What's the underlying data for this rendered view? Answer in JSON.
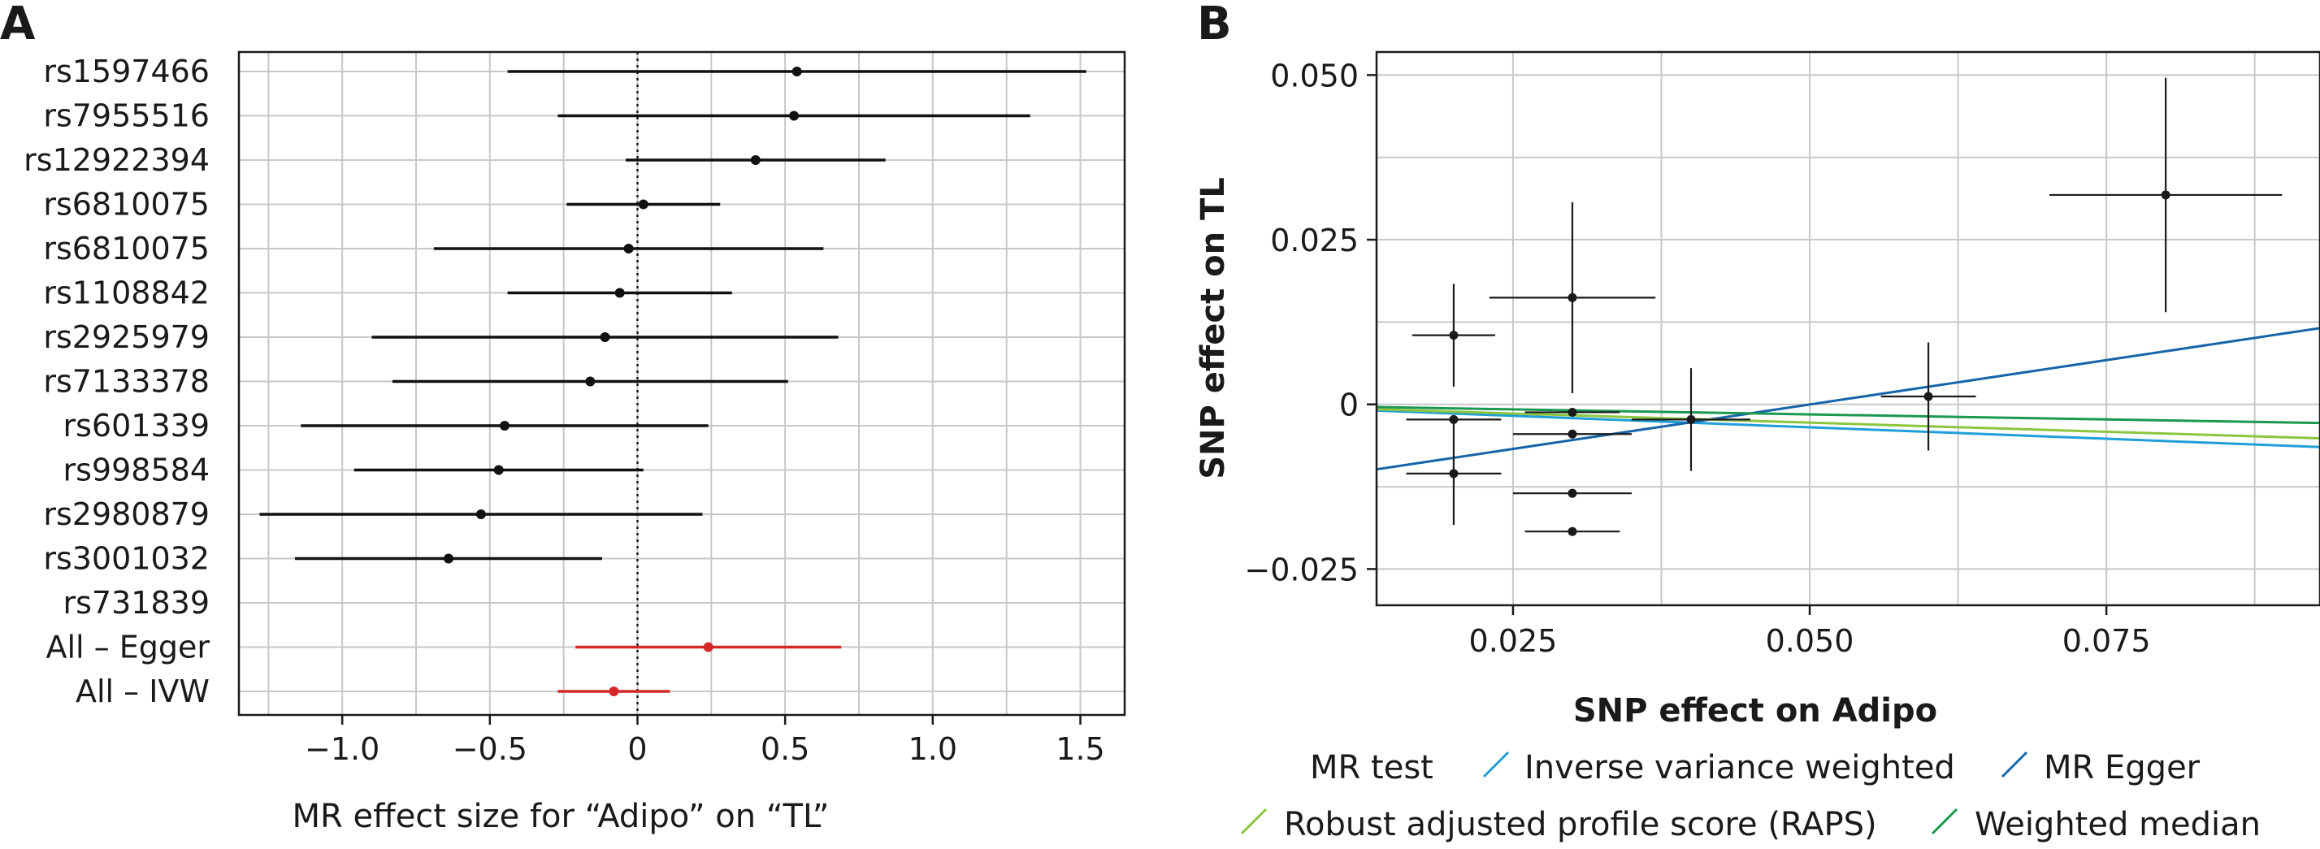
{
  "chart_data": [
    {
      "panel": "A",
      "type": "forest",
      "xlabel": "MR effect size for “Adipo” on “TL”",
      "xlim": [
        -1.35,
        1.65
      ],
      "xticks": [
        -1.0,
        -0.5,
        0,
        0.5,
        1.0,
        1.5
      ],
      "xtick_labels": [
        "−1.0",
        "−0.5",
        "0",
        "0.5",
        "1.0",
        "1.5"
      ],
      "grid": true,
      "reference_line": 0,
      "rows": [
        {
          "label": "rs1597466",
          "estimate": 0.54,
          "lower": -0.44,
          "upper": 1.52,
          "color": "#111111"
        },
        {
          "label": "rs7955516",
          "estimate": 0.53,
          "lower": -0.27,
          "upper": 1.33,
          "color": "#111111"
        },
        {
          "label": "rs12922394",
          "estimate": 0.4,
          "lower": -0.04,
          "upper": 0.84,
          "color": "#111111"
        },
        {
          "label": "rs6810075",
          "estimate": 0.02,
          "lower": -0.24,
          "upper": 0.28,
          "color": "#111111"
        },
        {
          "label": "rs6810075",
          "estimate": -0.03,
          "lower": -0.69,
          "upper": 0.63,
          "color": "#111111"
        },
        {
          "label": "rs1108842",
          "estimate": -0.06,
          "lower": -0.44,
          "upper": 0.32,
          "color": "#111111"
        },
        {
          "label": "rs2925979",
          "estimate": -0.11,
          "lower": -0.9,
          "upper": 0.68,
          "color": "#111111"
        },
        {
          "label": "rs7133378",
          "estimate": -0.16,
          "lower": -0.83,
          "upper": 0.51,
          "color": "#111111"
        },
        {
          "label": "rs601339",
          "estimate": -0.45,
          "lower": -1.14,
          "upper": 0.24,
          "color": "#111111"
        },
        {
          "label": "rs998584",
          "estimate": -0.47,
          "lower": -0.96,
          "upper": 0.02,
          "color": "#111111"
        },
        {
          "label": "rs2980879",
          "estimate": -0.53,
          "lower": -1.28,
          "upper": 0.22,
          "color": "#111111"
        },
        {
          "label": "rs3001032",
          "estimate": -0.64,
          "lower": -1.16,
          "upper": -0.12,
          "color": "#111111"
        },
        {
          "label": "rs731839",
          "estimate": null,
          "lower": null,
          "upper": null,
          "color": "#111111"
        },
        {
          "label": "All – Egger",
          "estimate": 0.24,
          "lower": -0.21,
          "upper": 0.69,
          "color": "#d62728"
        },
        {
          "label": "All – IVW",
          "estimate": -0.08,
          "lower": -0.27,
          "upper": 0.11,
          "color": "#d62728"
        }
      ]
    },
    {
      "panel": "B",
      "type": "scatter",
      "xlabel": "SNP effect on Adipo",
      "ylabel": "SNP effect on TL",
      "xlim": [
        0.0135,
        0.093
      ],
      "ylim": [
        -0.0305,
        0.0535
      ],
      "xticks": [
        0.025,
        0.05,
        0.075
      ],
      "xtick_labels": [
        "0.025",
        "0.050",
        "0.075"
      ],
      "yticks": [
        -0.025,
        0,
        0.025,
        0.05
      ],
      "ytick_labels": [
        "−0.025",
        "0",
        "0.025",
        "0.050"
      ],
      "grid": true,
      "points": [
        {
          "x": 0.02,
          "y": 0.0105,
          "x_err": 0.0035,
          "y_err": 0.0078
        },
        {
          "x": 0.02,
          "y": -0.0023,
          "x_err": 0.004,
          "y_err": 0.0
        },
        {
          "x": 0.02,
          "y": -0.0105,
          "x_err": 0.004,
          "y_err": 0.0078
        },
        {
          "x": 0.03,
          "y": 0.0162,
          "x_err": 0.007,
          "y_err": 0.0145
        },
        {
          "x": 0.03,
          "y": -0.0012,
          "x_err": 0.004,
          "y_err": 0.0
        },
        {
          "x": 0.03,
          "y": -0.0045,
          "x_err": 0.005,
          "y_err": 0.0
        },
        {
          "x": 0.03,
          "y": -0.0135,
          "x_err": 0.005,
          "y_err": 0.0
        },
        {
          "x": 0.03,
          "y": -0.0193,
          "x_err": 0.004,
          "y_err": 0.0
        },
        {
          "x": 0.04,
          "y": -0.0023,
          "x_err": 0.005,
          "y_err": 0.0078
        },
        {
          "x": 0.06,
          "y": 0.0012,
          "x_err": 0.004,
          "y_err": 0.0082
        },
        {
          "x": 0.08,
          "y": 0.0318,
          "x_err": 0.0098,
          "y_err": 0.0178
        }
      ],
      "lines": [
        {
          "name": "Inverse variance weighted",
          "color": "#1f9fd8",
          "intercept": 0.0,
          "slope": -0.0696
        },
        {
          "name": "MR Egger",
          "color": "#1565a8",
          "intercept": -0.0135,
          "slope": 0.2696
        },
        {
          "name": "Robust adjusted profile score (RAPS)",
          "color": "#8cc63f",
          "intercept": 0.0,
          "slope": -0.0554
        },
        {
          "name": "Weighted median",
          "color": "#1a9850",
          "intercept": 0.0,
          "slope": -0.0304
        }
      ],
      "legend_title": "MR test",
      "legend_position": "bottom"
    }
  ],
  "panel_a_letter": "A",
  "panel_b_letter": "B"
}
